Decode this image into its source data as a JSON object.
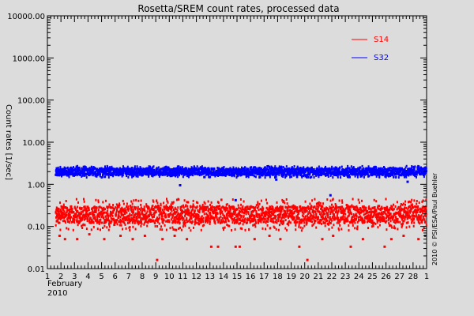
{
  "chart_data": {
    "type": "scatter",
    "title": "Rosetta/SREM count rates, processed data",
    "ylabel": "Count rates [1/sec]",
    "yscale": "log",
    "ylim": [
      0.01,
      10000
    ],
    "y_ticks": [
      "0.01",
      "0.10",
      "1.00",
      "10.00",
      "100.00",
      "1000.00",
      "10000.00"
    ],
    "xlim": [
      1,
      29
    ],
    "x_ticks": [
      "1",
      "2",
      "3",
      "4",
      "5",
      "6",
      "7",
      "8",
      "9",
      "10",
      "11",
      "12",
      "13",
      "14",
      "15",
      "16",
      "17",
      "18",
      "19",
      "20",
      "21",
      "22",
      "23",
      "24",
      "25",
      "26",
      "27",
      "28",
      "1"
    ],
    "x_sublabel_month": "February",
    "x_sublabel_year": "2010",
    "data_start_day": 1.6,
    "legend_position": "top-right",
    "credit": "2010 © PSI/ESA/Paul Buehler",
    "series": [
      {
        "name": "S14",
        "color": "#ff0000",
        "typical_range": [
          0.12,
          0.3
        ],
        "extremes": [
          0.08,
          0.45
        ],
        "outliers": [
          [
            1.9,
            0.06
          ],
          [
            2.3,
            0.05
          ],
          [
            3.2,
            0.05
          ],
          [
            4.1,
            0.065
          ],
          [
            5.2,
            0.05
          ],
          [
            6.4,
            0.06
          ],
          [
            7.3,
            0.05
          ],
          [
            8.2,
            0.06
          ],
          [
            9.1,
            0.016
          ],
          [
            9.5,
            0.05
          ],
          [
            10.4,
            0.06
          ],
          [
            11.3,
            0.05
          ],
          [
            13.1,
            0.033
          ],
          [
            13.6,
            0.033
          ],
          [
            14.9,
            0.033
          ],
          [
            15.2,
            0.033
          ],
          [
            16.3,
            0.05
          ],
          [
            17.4,
            0.06
          ],
          [
            18.2,
            0.05
          ],
          [
            19.6,
            0.033
          ],
          [
            20.2,
            0.016
          ],
          [
            21.3,
            0.05
          ],
          [
            22.1,
            0.06
          ],
          [
            23.4,
            0.033
          ],
          [
            24.3,
            0.05
          ],
          [
            25.9,
            0.033
          ],
          [
            26.4,
            0.05
          ],
          [
            27.3,
            0.06
          ],
          [
            28.4,
            0.05
          ],
          [
            28.9,
            0.06
          ]
        ]
      },
      {
        "name": "S32",
        "color": "#0000ff",
        "typical_range": [
          1.65,
          2.4
        ],
        "extremes": [
          1.45,
          2.7
        ],
        "outliers": [
          [
            10.8,
            0.95
          ],
          [
            14.9,
            0.42
          ],
          [
            17.9,
            1.3
          ],
          [
            21.9,
            0.55
          ],
          [
            27.6,
            1.15
          ]
        ]
      }
    ]
  }
}
